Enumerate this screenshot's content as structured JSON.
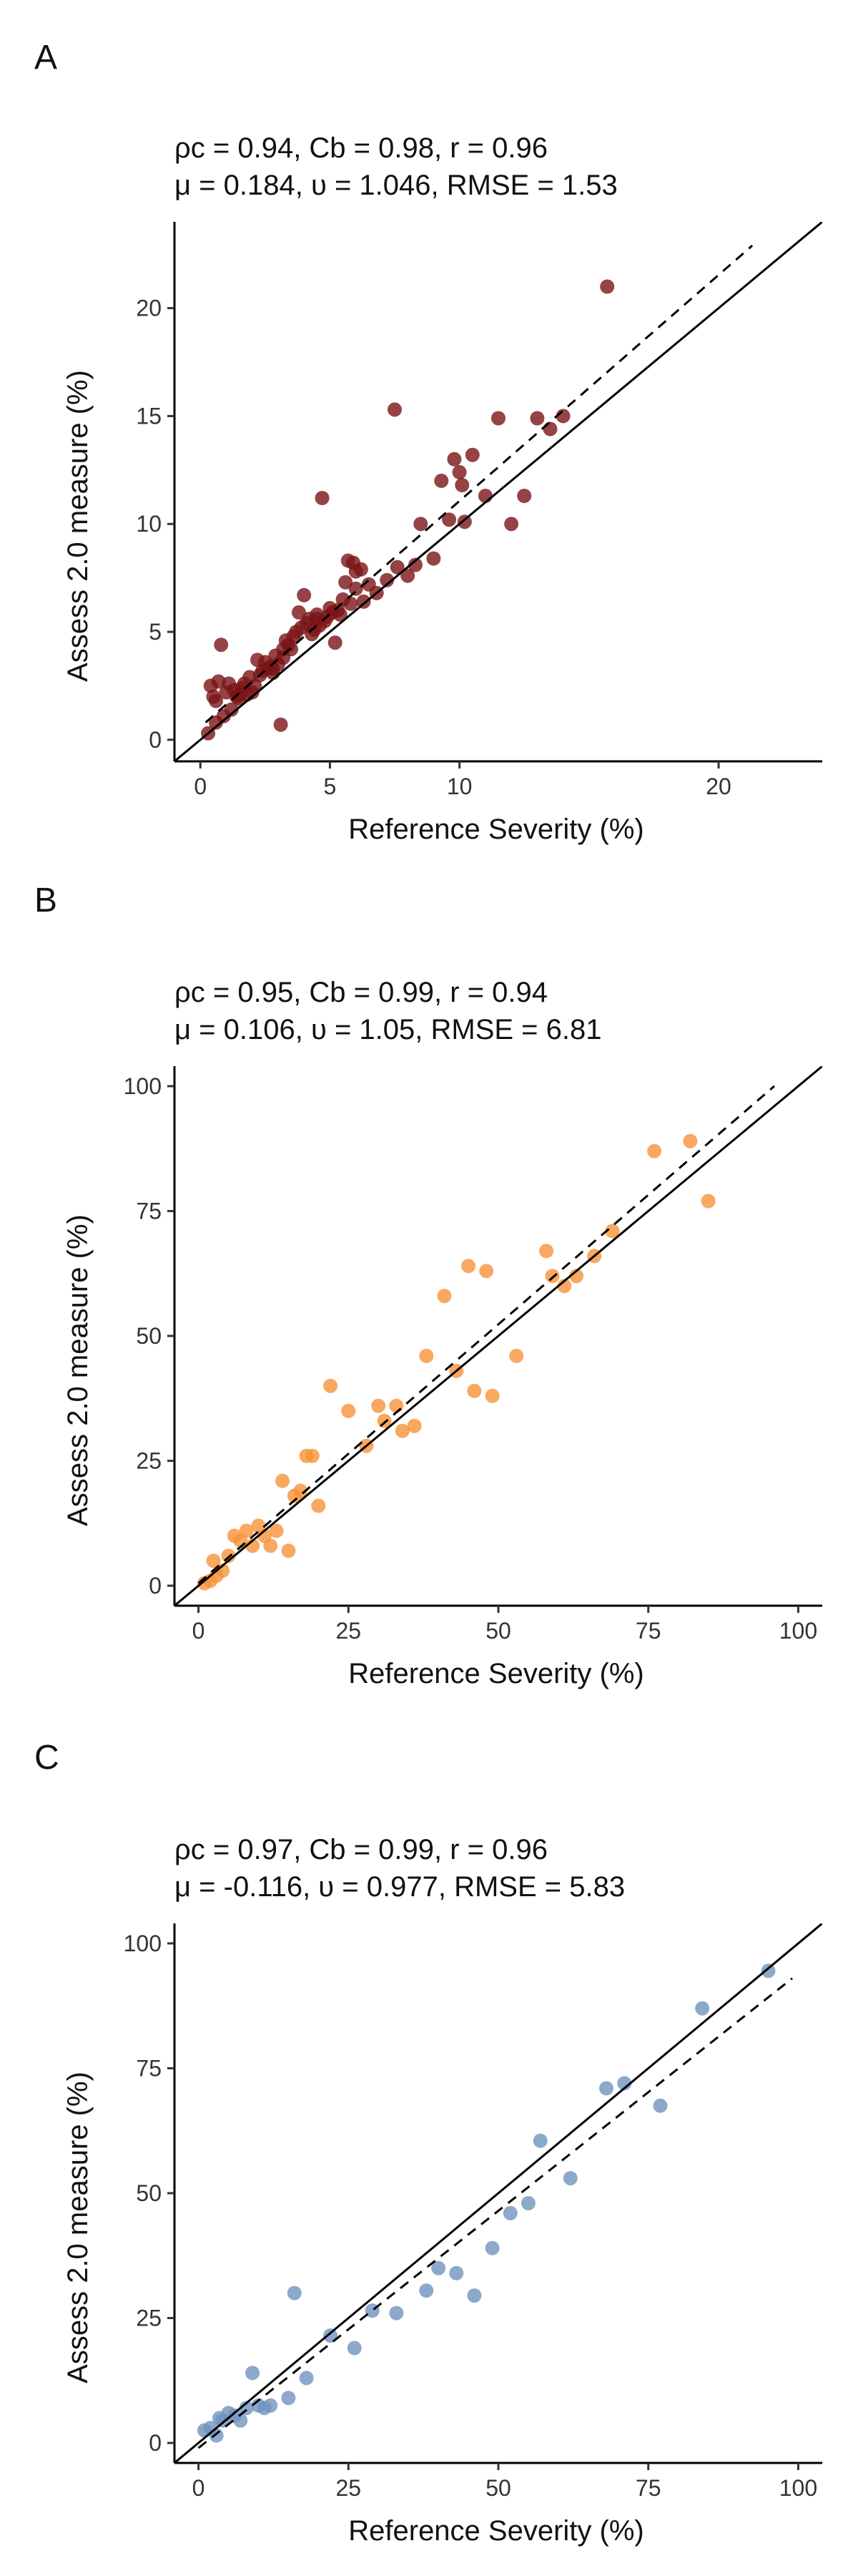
{
  "chart_data": [
    {
      "type": "scatter",
      "panel_label": "A",
      "stats_line1": "ρc = 0.94, Cb = 0.98, r = 0.96",
      "stats_line2": "μ = 0.184, υ = 1.046, RMSE = 1.53",
      "xlabel": "Reference Severity (%)",
      "ylabel": "Assess 2.0 measure (%)",
      "xlim": [
        -1,
        24
      ],
      "ylim": [
        -1,
        24
      ],
      "xticks": [
        0,
        5,
        10,
        20
      ],
      "xtick_labels": [
        "0",
        "5",
        "10",
        "20"
      ],
      "yticks": [
        0,
        5,
        10,
        15,
        20
      ],
      "ytick_labels": [
        "0",
        "5",
        "10",
        "15",
        "20"
      ],
      "point_color": "#7b1416",
      "identity_line": {
        "x": [
          -1,
          24
        ],
        "y": [
          -1,
          24
        ]
      },
      "fit_line": {
        "x": [
          0.2,
          21.3
        ],
        "y": [
          0.8,
          22.9
        ]
      },
      "grid": false,
      "points": {
        "x": [
          0.3,
          0.4,
          0.5,
          0.6,
          0.7,
          0.8,
          0.9,
          1.0,
          1.1,
          1.2,
          1.3,
          1.4,
          1.5,
          1.6,
          1.7,
          1.8,
          1.9,
          2.0,
          2.1,
          2.2,
          2.3,
          2.4,
          2.5,
          2.6,
          2.7,
          2.8,
          2.9,
          3.0,
          3.1,
          3.2,
          3.3,
          3.4,
          3.5,
          3.6,
          3.7,
          3.8,
          3.9,
          4.0,
          4.1,
          4.2,
          4.3,
          4.4,
          4.5,
          4.6,
          4.7,
          4.8,
          4.9,
          5.0,
          5.1,
          5.2,
          5.3,
          5.4,
          5.5,
          5.6,
          5.7,
          5.8,
          5.9,
          6.0,
          6.2,
          6.3,
          6.5,
          6.8,
          7.2,
          7.5,
          7.6,
          8.0,
          8.3,
          8.5,
          9.0,
          9.3,
          9.6,
          9.8,
          10.0,
          10.1,
          10.2,
          10.5,
          11.0,
          11.5,
          12.0,
          12.5,
          13.0,
          13.5,
          14.0,
          15.7,
          0.6,
          1.5,
          2.8,
          3.2,
          4.5,
          6.0
        ],
        "y": [
          0.3,
          2.5,
          2.0,
          0.8,
          2.7,
          4.4,
          1.1,
          2.2,
          2.6,
          1.4,
          2.3,
          2.0,
          1.9,
          2.4,
          2.6,
          2.1,
          2.9,
          2.2,
          2.5,
          3.7,
          3.0,
          3.2,
          3.6,
          3.3,
          3.4,
          3.1,
          3.9,
          3.5,
          0.7,
          3.8,
          4.6,
          4.4,
          4.2,
          4.8,
          5.0,
          5.9,
          5.2,
          6.7,
          5.4,
          5.6,
          4.9,
          5.1,
          5.8,
          5.3,
          11.2,
          5.5,
          5.7,
          6.1,
          5.9,
          4.5,
          6.0,
          5.8,
          6.5,
          7.3,
          8.3,
          6.3,
          8.2,
          7.0,
          7.9,
          6.4,
          7.2,
          6.8,
          7.4,
          15.3,
          8.0,
          7.6,
          8.1,
          10.0,
          8.4,
          12.0,
          10.2,
          13.0,
          12.4,
          11.8,
          10.1,
          13.2,
          11.3,
          14.9,
          10.0,
          11.3,
          14.9,
          14.4,
          15.0,
          21.0,
          1.8,
          2.1,
          3.3,
          4.2,
          5.6,
          7.8
        ]
      }
    },
    {
      "type": "scatter",
      "panel_label": "B",
      "stats_line1": "ρc = 0.95, Cb = 0.99, r = 0.94",
      "stats_line2": "μ = 0.106, υ = 1.05, RMSE = 6.81",
      "xlabel": "Reference Severity (%)",
      "ylabel": "Assess 2.0 measure (%)",
      "xlim": [
        -4,
        104
      ],
      "ylim": [
        -4,
        104
      ],
      "xticks": [
        0,
        25,
        50,
        75,
        100
      ],
      "xtick_labels": [
        "0",
        "25",
        "50",
        "75",
        "100"
      ],
      "yticks": [
        0,
        25,
        50,
        75,
        100
      ],
      "ytick_labels": [
        "0",
        "25",
        "50",
        "75",
        "100"
      ],
      "point_color": "#f7923a",
      "identity_line": {
        "x": [
          -4,
          104
        ],
        "y": [
          -4,
          104
        ]
      },
      "fit_line": {
        "x": [
          0,
          96
        ],
        "y": [
          0.5,
          100
        ]
      },
      "grid": false,
      "points": {
        "x": [
          1,
          2,
          2.5,
          3,
          4,
          5,
          6,
          7,
          8,
          9,
          10,
          11,
          12,
          13,
          14,
          15,
          16,
          17,
          18,
          19,
          20,
          22,
          25,
          28,
          30,
          31,
          33,
          34,
          36,
          38,
          41,
          43,
          45,
          46,
          48,
          49,
          53,
          58,
          59,
          61,
          63,
          66,
          69,
          76,
          82,
          85
        ],
        "y": [
          0.5,
          1,
          5,
          2,
          3,
          6,
          10,
          9,
          11,
          8,
          12,
          10,
          8,
          11,
          21,
          7,
          18,
          19,
          26,
          26,
          16,
          40,
          35,
          28,
          36,
          33,
          36,
          31,
          32,
          46,
          58,
          43,
          64,
          39,
          63,
          38,
          46,
          67,
          62,
          60,
          62,
          66,
          71,
          87,
          89,
          77
        ]
      }
    },
    {
      "type": "scatter",
      "panel_label": "C",
      "stats_line1": "ρc = 0.97, Cb = 0.99, r = 0.96",
      "stats_line2": "μ = -0.116, υ = 0.977, RMSE = 5.83",
      "xlabel": "Reference Severity (%)",
      "ylabel": "Assess 2.0 measure (%)",
      "xlim": [
        -4,
        104
      ],
      "ylim": [
        -4,
        104
      ],
      "xticks": [
        0,
        25,
        50,
        75,
        100
      ],
      "xtick_labels": [
        "0",
        "25",
        "50",
        "75",
        "100"
      ],
      "yticks": [
        0,
        25,
        50,
        75,
        100
      ],
      "ytick_labels": [
        "0",
        "25",
        "50",
        "75",
        "100"
      ],
      "point_color": "#6f93bf",
      "identity_line": {
        "x": [
          -4,
          104
        ],
        "y": [
          -4,
          104
        ]
      },
      "fit_line": {
        "x": [
          0,
          99
        ],
        "y": [
          -1,
          93
        ]
      },
      "grid": false,
      "points": {
        "x": [
          1,
          2,
          3,
          3.5,
          4,
          5,
          6,
          7,
          8,
          9,
          10,
          11,
          12,
          15,
          16,
          18,
          22,
          26,
          29,
          33,
          38,
          40,
          43,
          46,
          49,
          52,
          55,
          57,
          62,
          68,
          71,
          77,
          84,
          95
        ],
        "y": [
          2.5,
          3,
          1.5,
          5,
          4.5,
          6,
          5.5,
          4.5,
          7,
          14,
          7.5,
          7,
          7.5,
          9,
          30,
          13,
          21.5,
          19,
          26.5,
          26,
          30.5,
          35,
          34,
          29.5,
          39,
          46,
          48,
          60.5,
          53,
          71,
          72,
          67.5,
          87,
          94.5
        ]
      }
    }
  ]
}
